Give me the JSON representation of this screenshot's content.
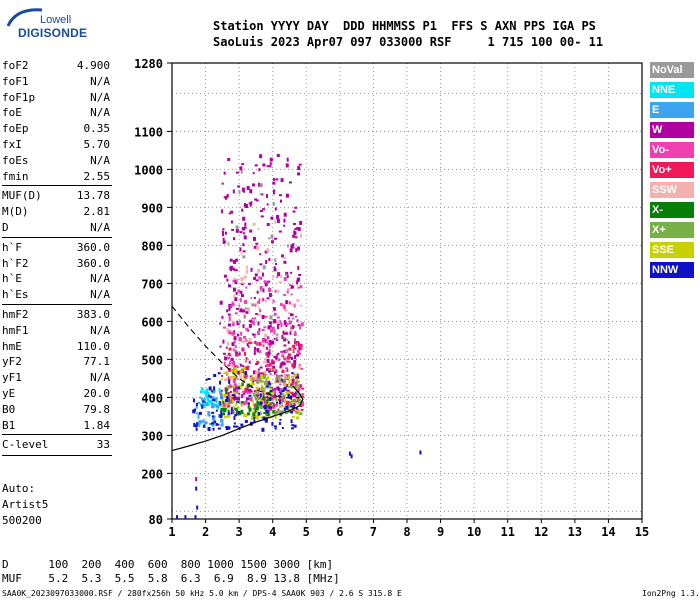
{
  "brand": {
    "line1": "Lowell",
    "line2": "DIGISONDE"
  },
  "header": {
    "line1": "Station YYYY DAY  DDD HHMMSS P1  FFS S AXN PPS IGA PS",
    "line2": "SaoLuis 2023 Apr07 097 033000 RSF     1 715 100 00- 11"
  },
  "params": [
    [
      [
        "foF2",
        "4.900"
      ],
      [
        "foF1",
        "N/A"
      ],
      [
        "foF1p",
        "N/A"
      ],
      [
        "foE",
        "N/A"
      ],
      [
        "foEp",
        "0.35"
      ],
      [
        "fxI",
        "5.70"
      ],
      [
        "foEs",
        "N/A"
      ],
      [
        "fmin",
        "2.55"
      ]
    ],
    [
      [
        "MUF(D)",
        "13.78"
      ],
      [
        "M(D)",
        "2.81"
      ],
      [
        "D",
        "N/A"
      ]
    ],
    [
      [
        "h`F",
        "360.0"
      ],
      [
        "h`F2",
        "360.0"
      ],
      [
        "h`E",
        "N/A"
      ],
      [
        "h`Es",
        "N/A"
      ]
    ],
    [
      [
        "hmF2",
        "383.0"
      ],
      [
        "hmF1",
        "N/A"
      ],
      [
        "hmE",
        "110.0"
      ],
      [
        "yF2",
        "77.1"
      ],
      [
        "yF1",
        "N/A"
      ],
      [
        "yE",
        "20.0"
      ],
      [
        "B0",
        "79.8"
      ],
      [
        "B1",
        "1.84"
      ]
    ],
    [
      [
        "C-level",
        "33"
      ]
    ]
  ],
  "auto": {
    "l1": "Auto:",
    "l2": "Artist5",
    "l3": "500200"
  },
  "legend": [
    {
      "label": "NoVal",
      "color": "#999999"
    },
    {
      "label": "NNE",
      "color": "#00e5f0"
    },
    {
      "label": "E",
      "color": "#3da4f0"
    },
    {
      "label": "W",
      "color": "#b000a0"
    },
    {
      "label": "Vo-",
      "color": "#f040b0"
    },
    {
      "label": "Vo+",
      "color": "#f01858"
    },
    {
      "label": "SSW",
      "color": "#f5b0b0"
    },
    {
      "label": "X-",
      "color": "#088008"
    },
    {
      "label": "X+",
      "color": "#78b048"
    },
    {
      "label": "SSE",
      "color": "#c8d000"
    },
    {
      "label": "NNW",
      "color": "#1010c8"
    }
  ],
  "bottom": {
    "d_row": "D      100  200  400  600  800 1000 1500 3000 [km]",
    "muf_row": "MUF    5.2  5.3  5.5  5.8  6.3  6.9  8.9 13.8 [MHz]"
  },
  "footer": {
    "left": "SAA0K_2023097033000.RSF / 280fx256h 50 kHz 5.0 km / DPS-4 SAA0K 903 / 2.6 S 315.8 E",
    "right": "Ion2Png 1.3.17"
  },
  "chart_data": {
    "type": "scatter",
    "x_ticks": [
      1,
      2,
      3,
      4,
      5,
      6,
      7,
      8,
      9,
      10,
      11,
      12,
      13,
      14,
      15
    ],
    "y_ticks": [
      80,
      200,
      300,
      400,
      500,
      600,
      700,
      800,
      900,
      1000,
      1100,
      1280
    ],
    "xlim": [
      1,
      15
    ],
    "ylim": [
      80,
      1280
    ],
    "grid": true,
    "legend_position": "right",
    "profile_curve": [
      [
        1.0,
        260
      ],
      [
        1.5,
        272
      ],
      [
        2.0,
        285
      ],
      [
        2.5,
        300
      ],
      [
        3.0,
        318
      ],
      [
        3.5,
        335
      ],
      [
        4.0,
        350
      ],
      [
        4.5,
        365
      ],
      [
        4.8,
        378
      ],
      [
        4.9,
        395
      ],
      [
        4.8,
        410
      ],
      [
        4.6,
        430
      ]
    ],
    "o_trace_dashed": [
      [
        1.0,
        640
      ],
      [
        1.5,
        585
      ],
      [
        2.0,
        535
      ],
      [
        2.5,
        490
      ],
      [
        3.0,
        450
      ],
      [
        3.5,
        420
      ],
      [
        4.0,
        405
      ],
      [
        4.5,
        398
      ],
      [
        4.8,
        400
      ]
    ],
    "echo_clusters": [
      {
        "mode": "W",
        "x_range": [
          2.4,
          4.8
        ],
        "y_range": [
          400,
          1050
        ],
        "density": 420
      },
      {
        "mode": "Vo-",
        "x_range": [
          2.5,
          4.9
        ],
        "y_range": [
          380,
          720
        ],
        "density": 180
      },
      {
        "mode": "Vo+",
        "x_range": [
          2.6,
          4.9
        ],
        "y_range": [
          360,
          560
        ],
        "density": 90
      },
      {
        "mode": "SSE",
        "x_range": [
          2.4,
          4.8
        ],
        "y_range": [
          350,
          480
        ],
        "density": 120
      },
      {
        "mode": "X+",
        "x_range": [
          3.4,
          4.8
        ],
        "y_range": [
          360,
          460
        ],
        "density": 70
      },
      {
        "mode": "X-",
        "x_range": [
          2.4,
          4.0
        ],
        "y_range": [
          360,
          440
        ],
        "density": 40
      },
      {
        "mode": "NNE",
        "x_range": [
          1.8,
          2.4
        ],
        "y_range": [
          380,
          430
        ],
        "density": 35
      },
      {
        "mode": "E",
        "x_range": [
          1.7,
          2.5
        ],
        "y_range": [
          330,
          430
        ],
        "density": 50
      },
      {
        "mode": "NNW",
        "x_range": [
          1.6,
          4.7
        ],
        "y_range": [
          320,
          470
        ],
        "density": 110
      },
      {
        "mode": "SSW",
        "x_range": [
          2.5,
          4.9
        ],
        "y_range": [
          450,
          900
        ],
        "density": 60
      },
      {
        "mode": "NoVal",
        "x_range": [
          2.8,
          4.6
        ],
        "y_range": [
          450,
          1000
        ],
        "density": 30
      }
    ],
    "isolated_points": [
      {
        "mode": "NNW",
        "x": 6.3,
        "y": 252
      },
      {
        "mode": "NNW",
        "x": 6.35,
        "y": 245
      },
      {
        "mode": "NNW",
        "x": 8.4,
        "y": 255
      },
      {
        "mode": "NNW",
        "x": 1.15,
        "y": 85
      },
      {
        "mode": "NNW",
        "x": 1.4,
        "y": 85
      },
      {
        "mode": "NNW",
        "x": 1.7,
        "y": 85
      },
      {
        "mode": "NNW",
        "x": 1.75,
        "y": 110
      },
      {
        "mode": "NNW",
        "x": 1.72,
        "y": 160
      },
      {
        "mode": "W",
        "x": 1.72,
        "y": 185
      }
    ]
  }
}
